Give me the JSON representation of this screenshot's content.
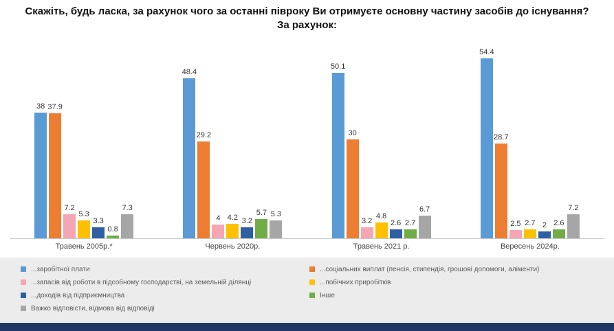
{
  "title": {
    "line1": "Скажіть, будь ласка, за рахунок чого за останні півроку Ви отримуєте основну частину засобів до існування?",
    "line2": "За рахунок:"
  },
  "colors": {
    "footer_bar": "#1F3864",
    "baseline": "#C9C9C9",
    "legend_background": "#ECECEC"
  },
  "chart_data": {
    "type": "bar",
    "title": "Скажіть, будь ласка, за рахунок чого за останні півроку Ви отримуєте основну частину засобів до існування? За рахунок:",
    "xlabel": "",
    "ylabel": "",
    "ylim": [
      0,
      60
    ],
    "grid": false,
    "legend_position": "bottom",
    "categories": [
      "Травень 2005р.*",
      "Червень 2020р.",
      "Травень 2021 р.",
      "Вересень 2024р."
    ],
    "series": [
      {
        "key": "wage",
        "name": "...заробітної плати",
        "color": "#5B9BD5",
        "values": [
          38,
          48.4,
          50.1,
          54.4
        ]
      },
      {
        "key": "social",
        "name": "...соціальних виплат (пенсія, стипендія, грошові допомоги, аліменти)",
        "color": "#ED7D31",
        "values": [
          37.9,
          29.2,
          30,
          28.7
        ]
      },
      {
        "key": "household",
        "name": "...запасів від роботи в підсобному господарстві, на земельній ділянці",
        "color": "#F4A6B4",
        "values": [
          7.2,
          4,
          3.2,
          2.5
        ]
      },
      {
        "key": "side-income",
        "name": "...побічних приробітків",
        "color": "#FFC000",
        "values": [
          5.3,
          4.2,
          4.8,
          2.7
        ]
      },
      {
        "key": "business",
        "name": "...доходів від підприємництва",
        "color": "#2E5FA3",
        "values": [
          3.3,
          3.2,
          2.6,
          2
        ]
      },
      {
        "key": "other",
        "name": "Інше",
        "color": "#70AD47",
        "values": [
          0.8,
          5.7,
          2.7,
          2.6
        ]
      },
      {
        "key": "hard-to-say",
        "name": "Важко відповісти, відмова від відповіді",
        "color": "#A6A6A6",
        "values": [
          7.3,
          5.3,
          6.7,
          7.2
        ]
      }
    ],
    "legend_columns": [
      [
        0,
        2,
        4,
        6
      ],
      [
        1,
        3,
        5
      ]
    ]
  }
}
